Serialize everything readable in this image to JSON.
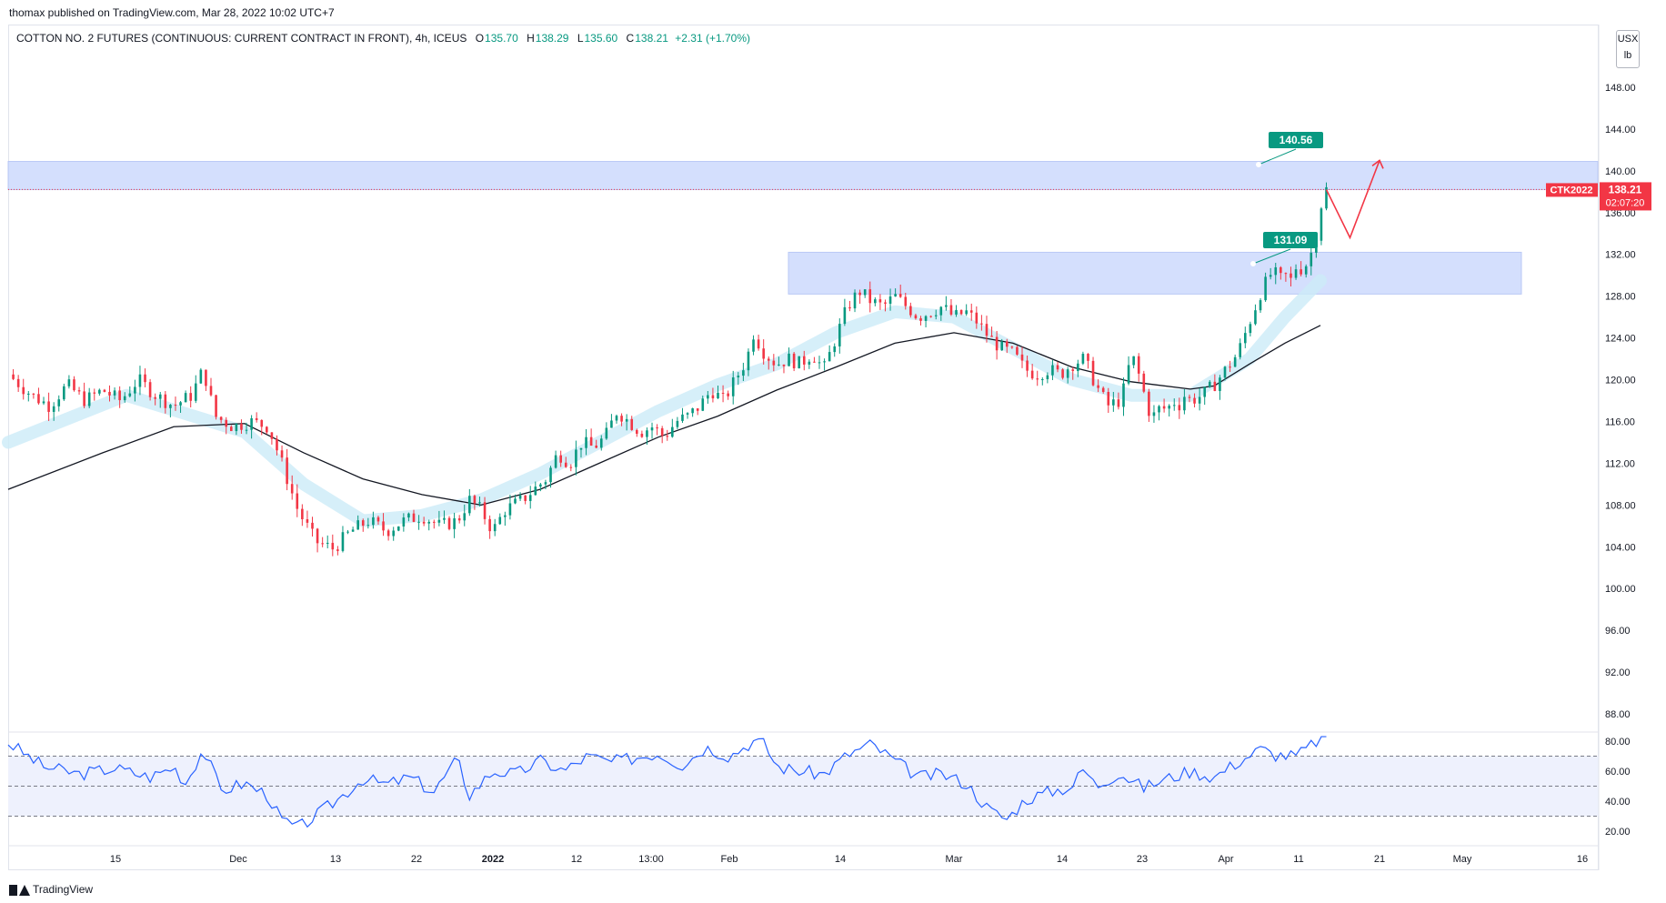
{
  "header": {
    "published": "thomax published on TradingView.com, Mar 28, 2022 10:02 UTC+7"
  },
  "legend": {
    "symbol": "COTTON NO. 2 FUTURES (CONTINUOUS: CURRENT CONTRACT IN FRONT), 4h, ICEUS",
    "o_label": "O",
    "o": "135.70",
    "h_label": "H",
    "h": "138.29",
    "l_label": "L",
    "l": "135.60",
    "c_label": "C",
    "c": "138.21",
    "change": "+2.31 (+1.70%)"
  },
  "units": {
    "currency": "USX",
    "unit": "lb"
  },
  "price_tag": {
    "symbol": "CTK2022",
    "price": "138.21",
    "countdown": "02:07:20"
  },
  "annotations": {
    "target_upper": "140.56",
    "target_lower": "131.09"
  },
  "footer": {
    "brand": "TradingView"
  },
  "colors": {
    "up": "#089981",
    "down": "#f23645",
    "zone": "#d0dcfd",
    "ma": "#131722",
    "band": "#ccebf8",
    "rsi": "#2962ff"
  },
  "chart_data": {
    "type": "candlestick",
    "title": "COTTON NO. 2 FUTURES (CONTINUOUS: CURRENT CONTRACT IN FRONT), 4h, ICEUS",
    "x_ticks": [
      "15",
      "Dec",
      "13",
      "22",
      "2022",
      "12",
      "13:00",
      "Feb",
      "14",
      "Mar",
      "14",
      "23",
      "Apr",
      "11",
      "21",
      "May",
      "16"
    ],
    "y_ticks": [
      "88.00",
      "92.00",
      "96.00",
      "100.00",
      "104.00",
      "108.00",
      "112.00",
      "116.00",
      "120.00",
      "124.00",
      "128.00",
      "132.00",
      "136.00",
      "140.00",
      "144.00",
      "148.00"
    ],
    "y_range": [
      86,
      153
    ],
    "last_price": 138.21,
    "price_path": [
      [
        0,
        120.5
      ],
      [
        0.02,
        118.5
      ],
      [
        0.035,
        117.5
      ],
      [
        0.05,
        119.5
      ],
      [
        0.065,
        118.0
      ],
      [
        0.08,
        119.0
      ],
      [
        0.095,
        118.0
      ],
      [
        0.11,
        120.0
      ],
      [
        0.125,
        118.5
      ],
      [
        0.14,
        117.5
      ],
      [
        0.155,
        118.5
      ],
      [
        0.165,
        121.0
      ],
      [
        0.175,
        116.5
      ],
      [
        0.19,
        115.5
      ],
      [
        0.205,
        116.0
      ],
      [
        0.22,
        115.5
      ],
      [
        0.23,
        112.5
      ],
      [
        0.245,
        107.5
      ],
      [
        0.26,
        104.5
      ],
      [
        0.275,
        103.8
      ],
      [
        0.29,
        105.5
      ],
      [
        0.305,
        106.5
      ],
      [
        0.32,
        105.5
      ],
      [
        0.335,
        106.5
      ],
      [
        0.35,
        107.0
      ],
      [
        0.365,
        106.0
      ],
      [
        0.38,
        106.5
      ],
      [
        0.39,
        108.5
      ],
      [
        0.4,
        107.5
      ],
      [
        0.41,
        105.5
      ],
      [
        0.42,
        107.5
      ],
      [
        0.435,
        108.5
      ],
      [
        0.445,
        109.5
      ],
      [
        0.455,
        110.5
      ],
      [
        0.465,
        113.0
      ],
      [
        0.475,
        112.0
      ],
      [
        0.485,
        114.0
      ],
      [
        0.495,
        113.5
      ],
      [
        0.505,
        114.5
      ],
      [
        0.515,
        117.0
      ],
      [
        0.525,
        116.0
      ],
      [
        0.535,
        115.0
      ],
      [
        0.545,
        115.5
      ],
      [
        0.555,
        114.5
      ],
      [
        0.565,
        116.0
      ],
      [
        0.575,
        116.5
      ],
      [
        0.585,
        117.5
      ],
      [
        0.595,
        119.0
      ],
      [
        0.605,
        118.0
      ],
      [
        0.615,
        120.0
      ],
      [
        0.625,
        122.0
      ],
      [
        0.63,
        124.5
      ],
      [
        0.64,
        122.5
      ],
      [
        0.65,
        121.5
      ],
      [
        0.66,
        122.0
      ],
      [
        0.67,
        121.5
      ],
      [
        0.68,
        122.5
      ],
      [
        0.69,
        121.0
      ],
      [
        0.7,
        124.0
      ],
      [
        0.71,
        127.0
      ],
      [
        0.72,
        128.5
      ],
      [
        0.73,
        127.5
      ],
      [
        0.74,
        127.0
      ],
      [
        0.75,
        128.0
      ],
      [
        0.76,
        127.0
      ],
      [
        0.77,
        126.0
      ],
      [
        0.78,
        126.5
      ],
      [
        0.79,
        127.0
      ],
      [
        0.8,
        126.0
      ],
      [
        0.81,
        126.5
      ],
      [
        0.82,
        125.5
      ],
      [
        0.83,
        124.0
      ],
      [
        0.84,
        123.0
      ],
      [
        0.85,
        122.5
      ],
      [
        0.86,
        121.0
      ],
      [
        0.87,
        120.5
      ],
      [
        0.88,
        121.0
      ],
      [
        0.89,
        120.5
      ],
      [
        0.9,
        121.5
      ],
      [
        0.91,
        122.0
      ],
      [
        0.92,
        119.5
      ],
      [
        0.93,
        117.5
      ],
      [
        0.94,
        118.0
      ],
      [
        0.945,
        119.5
      ],
      [
        0.95,
        122.5
      ],
      [
        0.955,
        121.0
      ],
      [
        0.96,
        119.0
      ],
      [
        0.965,
        117.0
      ],
      [
        0.97,
        116.5
      ],
      [
        0.975,
        117.5
      ],
      [
        0.98,
        117.0
      ],
      [
        0.985,
        118.0
      ],
      [
        0.99,
        117.5
      ],
      [
        0.995,
        118.5
      ],
      [
        1.0,
        118.0
      ],
      [
        1.01,
        118.5
      ],
      [
        1.02,
        119.5
      ],
      [
        1.03,
        121.0
      ],
      [
        1.04,
        122.5
      ],
      [
        1.05,
        125.5
      ],
      [
        1.06,
        128.5
      ],
      [
        1.07,
        130.5
      ],
      [
        1.075,
        129.5
      ],
      [
        1.08,
        130.0
      ],
      [
        1.085,
        129.5
      ],
      [
        1.09,
        131.0
      ],
      [
        1.095,
        130.5
      ],
      [
        1.1,
        131.5
      ],
      [
        1.105,
        133.0
      ],
      [
        1.11,
        136.5
      ],
      [
        1.115,
        138.21
      ]
    ],
    "ma": [
      [
        0,
        109.5
      ],
      [
        0.08,
        113
      ],
      [
        0.14,
        115.5
      ],
      [
        0.2,
        115.8
      ],
      [
        0.25,
        113
      ],
      [
        0.3,
        110.5
      ],
      [
        0.35,
        109
      ],
      [
        0.4,
        108
      ],
      [
        0.45,
        109.5
      ],
      [
        0.5,
        112
      ],
      [
        0.55,
        114.5
      ],
      [
        0.6,
        116.5
      ],
      [
        0.65,
        119
      ],
      [
        0.7,
        121.2
      ],
      [
        0.75,
        123.5
      ],
      [
        0.8,
        124.5
      ],
      [
        0.85,
        123.5
      ],
      [
        0.9,
        121.2
      ],
      [
        0.95,
        119.8
      ],
      [
        1.0,
        119.1
      ],
      [
        1.02,
        119.4
      ],
      [
        1.05,
        121.5
      ],
      [
        1.08,
        123.5
      ],
      [
        1.11,
        125.2
      ]
    ],
    "band": [
      [
        0,
        114
      ],
      [
        0.1,
        118.5
      ],
      [
        0.2,
        115
      ],
      [
        0.25,
        110
      ],
      [
        0.3,
        106.5
      ],
      [
        0.35,
        107
      ],
      [
        0.4,
        108.5
      ],
      [
        0.45,
        111
      ],
      [
        0.5,
        114
      ],
      [
        0.55,
        117
      ],
      [
        0.6,
        119.5
      ],
      [
        0.65,
        121.5
      ],
      [
        0.7,
        124.5
      ],
      [
        0.75,
        126.5
      ],
      [
        0.8,
        126
      ],
      [
        0.85,
        123
      ],
      [
        0.9,
        120
      ],
      [
        0.95,
        118.5
      ],
      [
        1.0,
        118.5
      ],
      [
        1.05,
        122
      ],
      [
        1.08,
        126
      ],
      [
        1.11,
        129.5
      ]
    ],
    "zones": [
      {
        "from": 0,
        "to": 1.5,
        "low": 138.2,
        "high": 140.9
      },
      {
        "from": 0.66,
        "to": 1.28,
        "low": 128.2,
        "high": 132.2
      }
    ],
    "projection": [
      [
        1.115,
        138.21
      ],
      [
        1.135,
        133.6
      ],
      [
        1.16,
        141.0
      ]
    ],
    "rsi": {
      "y_ticks": [
        "20.00",
        "40.00",
        "60.00",
        "80.00"
      ],
      "levels": [
        70,
        50,
        30
      ],
      "range": [
        14,
        84
      ],
      "path": [
        [
          0,
          79
        ],
        [
          0.03,
          63
        ],
        [
          0.06,
          58
        ],
        [
          0.09,
          62
        ],
        [
          0.12,
          56
        ],
        [
          0.14,
          63
        ],
        [
          0.15,
          52
        ],
        [
          0.165,
          75
        ],
        [
          0.18,
          47
        ],
        [
          0.2,
          52
        ],
        [
          0.22,
          44
        ],
        [
          0.23,
          28
        ],
        [
          0.245,
          22
        ],
        [
          0.26,
          30
        ],
        [
          0.28,
          42
        ],
        [
          0.3,
          55
        ],
        [
          0.32,
          51
        ],
        [
          0.34,
          56
        ],
        [
          0.36,
          46
        ],
        [
          0.38,
          68
        ],
        [
          0.39,
          44
        ],
        [
          0.41,
          60
        ],
        [
          0.43,
          58
        ],
        [
          0.45,
          67
        ],
        [
          0.47,
          60
        ],
        [
          0.49,
          70
        ],
        [
          0.51,
          66
        ],
        [
          0.53,
          69
        ],
        [
          0.55,
          72
        ],
        [
          0.57,
          64
        ],
        [
          0.59,
          76
        ],
        [
          0.61,
          70
        ],
        [
          0.63,
          80
        ],
        [
          0.64,
          78
        ],
        [
          0.65,
          63
        ],
        [
          0.67,
          60
        ],
        [
          0.69,
          58
        ],
        [
          0.71,
          71
        ],
        [
          0.73,
          78
        ],
        [
          0.75,
          67
        ],
        [
          0.77,
          56
        ],
        [
          0.79,
          58
        ],
        [
          0.81,
          52
        ],
        [
          0.83,
          34
        ],
        [
          0.845,
          28
        ],
        [
          0.86,
          41
        ],
        [
          0.88,
          46
        ],
        [
          0.9,
          50
        ],
        [
          0.91,
          62
        ],
        [
          0.92,
          50
        ],
        [
          0.94,
          59
        ],
        [
          0.96,
          49
        ],
        [
          0.98,
          55
        ],
        [
          1.0,
          60
        ],
        [
          1.02,
          56
        ],
        [
          1.04,
          66
        ],
        [
          1.06,
          75
        ],
        [
          1.07,
          71
        ],
        [
          1.09,
          70
        ],
        [
          1.11,
          82
        ]
      ]
    }
  }
}
